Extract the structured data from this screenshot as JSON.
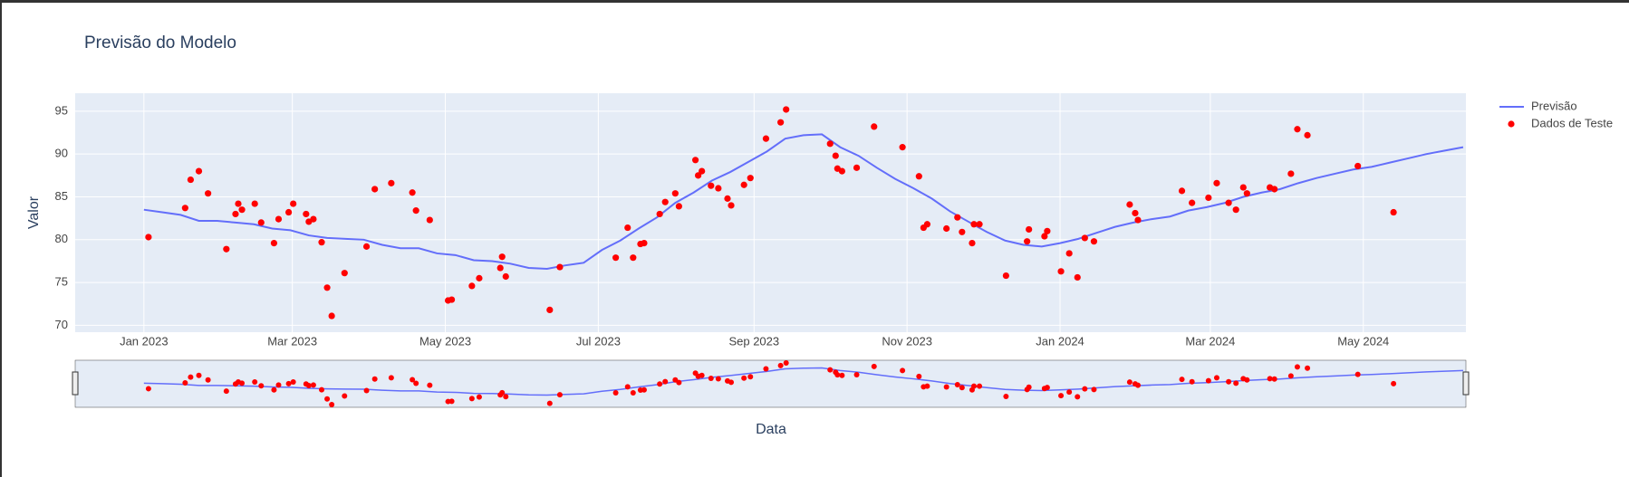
{
  "chart_data": {
    "type": "line",
    "title": "Previsão do Modelo",
    "x_label": "Data",
    "y_label": "Valor",
    "xlim": [
      2022.925,
      2024.443
    ],
    "ylim": [
      69.2,
      97.1
    ],
    "xticks": [
      {
        "value": 2023.0,
        "label": "Jan 2023"
      },
      {
        "value": 2023.162,
        "label": "Mar 2023"
      },
      {
        "value": 2023.329,
        "label": "May 2023"
      },
      {
        "value": 2023.496,
        "label": "Jul 2023"
      },
      {
        "value": 2023.666,
        "label": "Sep 2023"
      },
      {
        "value": 2023.833,
        "label": "Nov 2023"
      },
      {
        "value": 2024.0,
        "label": "Jan 2024"
      },
      {
        "value": 2024.164,
        "label": "Mar 2024"
      },
      {
        "value": 2024.331,
        "label": "May 2024"
      }
    ],
    "yticks": [
      70,
      75,
      80,
      85,
      90,
      95
    ],
    "grid": true,
    "legend": "right",
    "range_slider": true,
    "series": [
      {
        "name": "Previsão",
        "type": "line",
        "color": "#636efa",
        "x": [
          2023.0,
          2023.02,
          2023.04,
          2023.06,
          2023.08,
          2023.1,
          2023.12,
          2023.14,
          2023.16,
          2023.18,
          2023.2,
          2023.22,
          2023.24,
          2023.26,
          2023.28,
          2023.3,
          2023.32,
          2023.34,
          2023.36,
          2023.38,
          2023.4,
          2023.42,
          2023.44,
          2023.46,
          2023.48,
          2023.5,
          2023.52,
          2023.54,
          2023.56,
          2023.58,
          2023.6,
          2023.62,
          2023.64,
          2023.66,
          2023.68,
          2023.7,
          2023.72,
          2023.74,
          2023.76,
          2023.78,
          2023.8,
          2023.82,
          2023.84,
          2023.86,
          2023.88,
          2023.9,
          2023.92,
          2023.94,
          2023.96,
          2023.98,
          2024.0,
          2024.02,
          2024.04,
          2024.06,
          2024.08,
          2024.1,
          2024.12,
          2024.14,
          2024.16,
          2024.18,
          2024.2,
          2024.22,
          2024.24,
          2024.26,
          2024.28,
          2024.3,
          2024.32,
          2024.34,
          2024.36,
          2024.38,
          2024.4,
          2024.42,
          2024.44
        ],
        "values": [
          83.5,
          83.2,
          82.9,
          82.2,
          82.2,
          82.0,
          81.8,
          81.3,
          81.1,
          80.5,
          80.2,
          80.1,
          80.0,
          79.4,
          79.0,
          79.0,
          78.4,
          78.2,
          77.6,
          77.5,
          77.2,
          76.7,
          76.6,
          77.0,
          77.3,
          78.8,
          79.9,
          81.3,
          82.6,
          84.3,
          85.5,
          86.9,
          87.9,
          89.1,
          90.3,
          91.8,
          92.2,
          92.3,
          90.8,
          89.8,
          88.4,
          87.1,
          86.0,
          84.8,
          83.3,
          82.1,
          80.9,
          79.9,
          79.4,
          79.2,
          79.6,
          80.1,
          80.8,
          81.5,
          82.0,
          82.4,
          82.7,
          83.4,
          83.8,
          84.3,
          85.0,
          85.5,
          85.9,
          86.6,
          87.2,
          87.7,
          88.2,
          88.5,
          89.0,
          89.5,
          90.0,
          90.4,
          90.8
        ]
      },
      {
        "name": "Dados de Teste",
        "type": "scatter",
        "color": "#ff0000",
        "x": [
          2023.005,
          2023.045,
          2023.051,
          2023.06,
          2023.07,
          2023.09,
          2023.1,
          2023.103,
          2023.107,
          2023.121,
          2023.128,
          2023.142,
          2023.147,
          2023.158,
          2023.163,
          2023.177,
          2023.18,
          2023.185,
          2023.194,
          2023.2,
          2023.205,
          2023.219,
          2023.243,
          2023.252,
          2023.27,
          2023.293,
          2023.297,
          2023.312,
          2023.332,
          2023.336,
          2023.358,
          2023.366,
          2023.389,
          2023.391,
          2023.395,
          2023.443,
          2023.454,
          2023.515,
          2023.528,
          2023.534,
          2023.542,
          2023.546,
          2023.563,
          2023.569,
          2023.58,
          2023.584,
          2023.602,
          2023.605,
          2023.609,
          2023.619,
          2023.627,
          2023.637,
          2023.641,
          2023.655,
          2023.662,
          2023.679,
          2023.695,
          2023.701,
          2023.749,
          2023.755,
          2023.757,
          2023.762,
          2023.778,
          2023.797,
          2023.828,
          2023.846,
          2023.851,
          2023.855,
          2023.876,
          2023.888,
          2023.893,
          2023.904,
          2023.906,
          2023.912,
          2023.941,
          2023.964,
          2023.966,
          2023.983,
          2023.986,
          2024.001,
          2024.01,
          2024.019,
          2024.027,
          2024.037,
          2024.076,
          2024.082,
          2024.085,
          2024.133,
          2024.144,
          2024.162,
          2024.171,
          2024.184,
          2024.192,
          2024.2,
          2024.204,
          2024.229,
          2024.234,
          2024.252,
          2024.259,
          2024.27,
          2024.325,
          2024.364
        ],
        "values": [
          80.3,
          83.7,
          87.0,
          88.0,
          85.4,
          78.9,
          83.0,
          84.2,
          83.5,
          84.2,
          82.0,
          79.6,
          82.4,
          83.2,
          84.2,
          83.0,
          82.1,
          82.4,
          79.7,
          74.4,
          71.1,
          76.1,
          79.2,
          85.9,
          86.6,
          85.5,
          83.4,
          82.3,
          72.9,
          73.0,
          74.6,
          75.5,
          76.7,
          78.0,
          75.7,
          71.8,
          76.8,
          77.9,
          81.4,
          77.9,
          79.5,
          79.6,
          83.0,
          84.4,
          85.4,
          83.9,
          89.3,
          87.5,
          88.0,
          86.3,
          86.0,
          84.8,
          84.0,
          86.4,
          87.2,
          91.8,
          93.7,
          95.2,
          91.2,
          89.8,
          88.3,
          88.0,
          88.4,
          93.2,
          90.8,
          87.4,
          81.4,
          81.8,
          81.3,
          82.6,
          80.9,
          79.6,
          81.8,
          81.8,
          75.8,
          79.8,
          81.2,
          80.4,
          81.0,
          76.3,
          78.4,
          75.6,
          80.2,
          79.8,
          84.1,
          83.1,
          82.3,
          85.7,
          84.3,
          84.9,
          86.6,
          84.3,
          83.5,
          86.1,
          85.4,
          86.1,
          85.9,
          87.7,
          92.9,
          92.2,
          88.6,
          83.2
        ]
      }
    ]
  }
}
